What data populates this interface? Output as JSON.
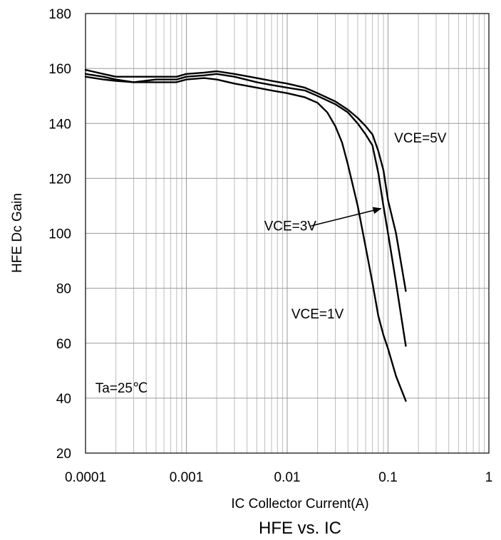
{
  "chart_data": {
    "type": "line",
    "title": "HFE vs. IC",
    "xlabel": "IC Collector Current(A)",
    "ylabel": "HFE Dc Gain",
    "x_scale": "log",
    "xlim": [
      0.0001,
      1
    ],
    "ylim": [
      20,
      180
    ],
    "x_ticks": [
      "0.0001",
      "0.001",
      "0.01",
      "0.1",
      "1"
    ],
    "y_ticks": [
      "20",
      "40",
      "60",
      "80",
      "100",
      "120",
      "140",
      "160",
      "180"
    ],
    "grid": true,
    "series": [
      {
        "name": "VCE=1V",
        "x": [
          0.0001,
          0.00015,
          0.0002,
          0.0003,
          0.0005,
          0.0008,
          0.001,
          0.0015,
          0.002,
          0.003,
          0.005,
          0.007,
          0.01,
          0.015,
          0.02,
          0.025,
          0.03,
          0.035,
          0.04,
          0.05,
          0.06,
          0.07,
          0.08,
          0.09,
          0.1,
          0.12,
          0.15
        ],
        "y": [
          157,
          156,
          155.5,
          155,
          155,
          155,
          156,
          156.5,
          156,
          154.5,
          153,
          152,
          151,
          149.5,
          147.5,
          144,
          139,
          133,
          125,
          110,
          95,
          82,
          70,
          63,
          58,
          48,
          39
        ]
      },
      {
        "name": "VCE=3V",
        "x": [
          0.0001,
          0.00015,
          0.0002,
          0.0003,
          0.0005,
          0.0008,
          0.001,
          0.0015,
          0.002,
          0.003,
          0.005,
          0.007,
          0.01,
          0.015,
          0.02,
          0.03,
          0.04,
          0.05,
          0.06,
          0.07,
          0.08,
          0.09,
          0.1,
          0.12,
          0.15
        ],
        "y": [
          158,
          157,
          156,
          155,
          156,
          156,
          157,
          157.5,
          158,
          157,
          155,
          154,
          153,
          152,
          150,
          147,
          144,
          140,
          136,
          132,
          122,
          110,
          100,
          82,
          59
        ]
      },
      {
        "name": "VCE=5V",
        "x": [
          0.0001,
          0.00015,
          0.0002,
          0.0003,
          0.0005,
          0.0008,
          0.001,
          0.0015,
          0.002,
          0.003,
          0.005,
          0.007,
          0.01,
          0.015,
          0.02,
          0.03,
          0.04,
          0.05,
          0.06,
          0.07,
          0.08,
          0.09,
          0.1,
          0.12,
          0.15
        ],
        "y": [
          159.5,
          158,
          157,
          157,
          157,
          157,
          158,
          158.5,
          159,
          158,
          156.5,
          155.5,
          154.5,
          153,
          151,
          148,
          145,
          142,
          139,
          136,
          130,
          123,
          112,
          100,
          79
        ]
      }
    ],
    "annotations": [
      {
        "text": "VCE=5V",
        "x": 0.115,
        "y": 133
      },
      {
        "text": "VCE=3V",
        "x": 0.0059,
        "y": 101,
        "arrow_to": {
          "x": 0.085,
          "y": 109
        }
      },
      {
        "text": "VCE=1V",
        "x": 0.011,
        "y": 69
      },
      {
        "text": "Ta=25℃",
        "x": 0.000125,
        "y": 42
      }
    ]
  }
}
